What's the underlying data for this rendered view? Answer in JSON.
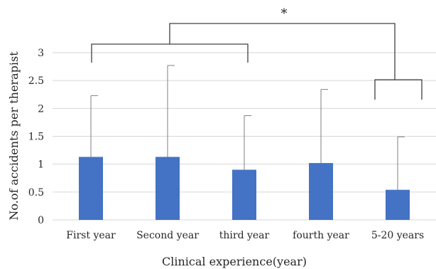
{
  "chart_data": {
    "type": "bar",
    "title": "",
    "xlabel": "Clinical experience(year)",
    "ylabel": "No.of accidents per therapist",
    "categories": [
      "First year",
      "Second year",
      "third year",
      "fourth year",
      "5-20 years"
    ],
    "values": [
      1.13,
      1.13,
      0.9,
      1.02,
      0.54
    ],
    "error_upper": [
      2.23,
      2.77,
      1.87,
      2.34,
      1.49
    ],
    "ylim": [
      0,
      3
    ],
    "yticks": [
      "0",
      "0.5",
      "1",
      "1.5",
      "2",
      "2.5",
      "3"
    ],
    "grid": true,
    "bar_color": "#4472c4",
    "significance_marker": "*"
  }
}
